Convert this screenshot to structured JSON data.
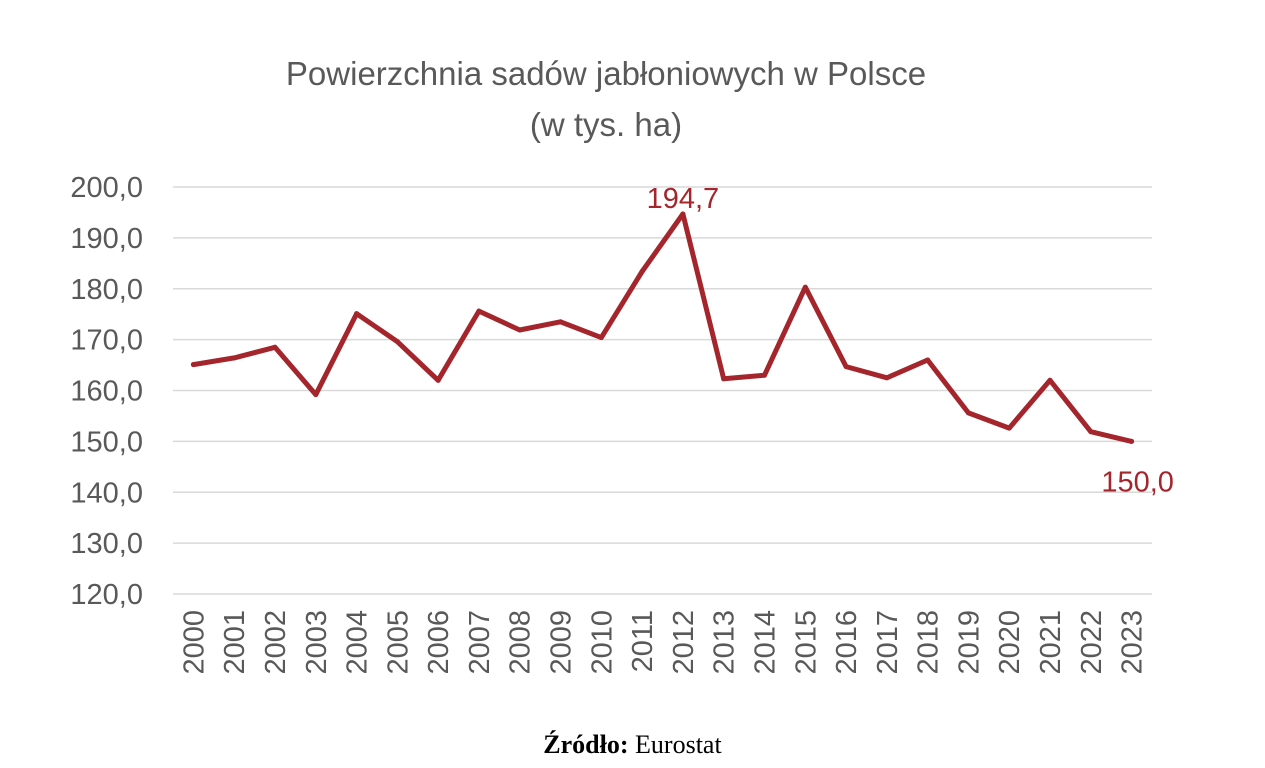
{
  "chart_data": {
    "type": "line",
    "title": [
      "Powierzchnia sadów jabłoniowych w Polsce",
      "(w tys. ha)"
    ],
    "xlabel": "",
    "ylabel": "",
    "categories": [
      "2000",
      "2001",
      "2002",
      "2003",
      "2004",
      "2005",
      "2006",
      "2007",
      "2008",
      "2009",
      "2010",
      "2011",
      "2012",
      "2013",
      "2014",
      "2015",
      "2016",
      "2017",
      "2018",
      "2019",
      "2020",
      "2021",
      "2022",
      "2023"
    ],
    "y_ticks": [
      "120,0",
      "130,0",
      "140,0",
      "150,0",
      "160,0",
      "170,0",
      "180,0",
      "190,0",
      "200,0"
    ],
    "ylim": [
      120,
      200
    ],
    "grid": true,
    "legend": "none",
    "series": [
      {
        "values": [
          165.1,
          166.4,
          168.5,
          159.2,
          175.1,
          169.6,
          162.0,
          175.6,
          171.9,
          173.5,
          170.4,
          183.4,
          194.7,
          162.3,
          163.0,
          180.3,
          164.7,
          162.5,
          166.0,
          155.6,
          152.6,
          162.0,
          151.9,
          150.0
        ]
      }
    ],
    "annotations": [
      {
        "category": "2012",
        "value": 194.7,
        "text": "194,7"
      },
      {
        "category": "2023",
        "value": 150.0,
        "text": "150,0"
      }
    ]
  },
  "colors": {
    "series": "#A4262C",
    "text": "#595959",
    "grid": "#D9D9D9"
  },
  "source": {
    "label": "Źródło:",
    "value": "Eurostat"
  }
}
